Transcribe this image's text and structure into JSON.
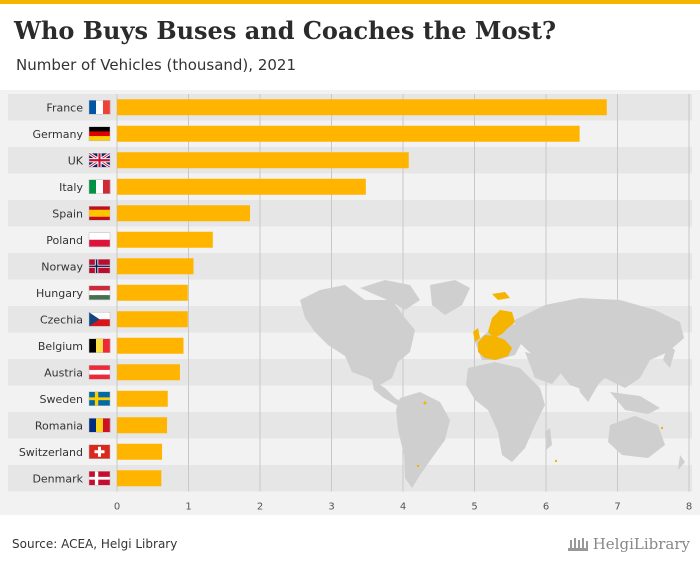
{
  "header": {
    "title": "Who Buys Buses and Coaches the Most?",
    "subtitle": "Number of Vehicles (thousand), 2021"
  },
  "footer": {
    "source": "Source: ACEA, Helgi Library",
    "logo": "HelgiLibrary"
  },
  "colors": {
    "bar": "#ffb400",
    "map_land": "#cfcfcf",
    "map_highlight": "#f5b400",
    "grid": "#c8c8c8"
  },
  "chart_data": {
    "type": "bar",
    "orientation": "horizontal",
    "categories": [
      "France",
      "Germany",
      "UK",
      "Italy",
      "Spain",
      "Poland",
      "Norway",
      "Hungary",
      "Czechia",
      "Belgium",
      "Austria",
      "Sweden",
      "Romania",
      "Switzerland",
      "Denmark"
    ],
    "flags": [
      "flag-france",
      "flag-germany",
      "flag-uk",
      "flag-italy",
      "flag-spain",
      "flag-poland",
      "flag-norway",
      "flag-hungary",
      "flag-czechia",
      "flag-belgium",
      "flag-austria",
      "flag-sweden",
      "flag-romania",
      "flag-switzerland",
      "flag-denmark"
    ],
    "values": [
      6.85,
      6.47,
      4.08,
      3.48,
      1.86,
      1.34,
      1.07,
      0.99,
      0.99,
      0.93,
      0.88,
      0.71,
      0.7,
      0.63,
      0.62
    ],
    "xlim": [
      0,
      8
    ],
    "xticks": [
      0,
      1,
      2,
      3,
      4,
      5,
      6,
      7,
      8
    ],
    "grid": true
  }
}
